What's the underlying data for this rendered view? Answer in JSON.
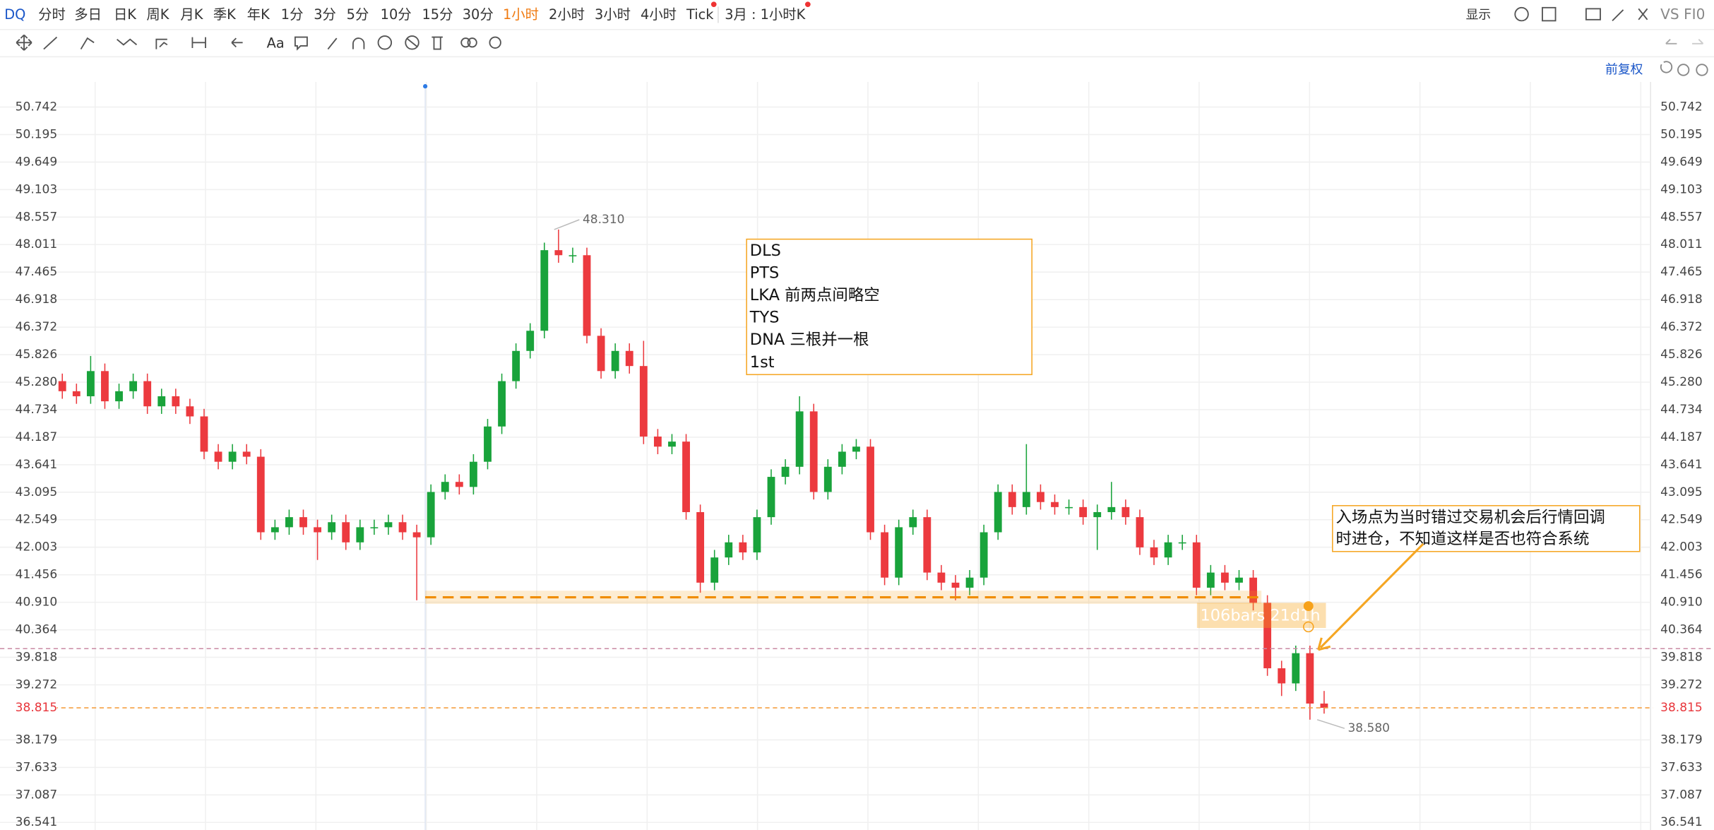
{
  "toolbar": {
    "symbol": "DQ",
    "periods": [
      "分时",
      "多日",
      "日K",
      "周K",
      "月K",
      "季K",
      "年K",
      "1分",
      "3分",
      "5分",
      "10分",
      "15分",
      "30分",
      "1小时",
      "2小时",
      "3小时",
      "4小时",
      "Tick"
    ],
    "active_period": "1小时",
    "period_menu": "3月 : 1小时K",
    "text_tool": "Aa",
    "display": "显示",
    "compare": "VS FI0",
    "adjust": "前复权"
  },
  "chart_data": {
    "type": "candlestick",
    "open": [
      45.3,
      45.1,
      45.0,
      45.5,
      44.9,
      45.1,
      45.3,
      44.8,
      45.0,
      44.8,
      44.6,
      43.9,
      43.7,
      43.9,
      43.8,
      42.3,
      42.4,
      42.6,
      42.4,
      42.3,
      42.5,
      42.1,
      42.4,
      42.4,
      42.5,
      42.3,
      42.2,
      43.1,
      43.3,
      43.2,
      43.7,
      44.4,
      45.3,
      45.9,
      46.3,
      47.9,
      47.8,
      47.8,
      46.2,
      45.5,
      45.9,
      45.6,
      44.2,
      44.0,
      44.1,
      42.7,
      41.3,
      41.8,
      42.1,
      41.9,
      42.6,
      43.4,
      43.6,
      44.7,
      43.1,
      43.6,
      43.9,
      44.0,
      42.3,
      41.4,
      42.4,
      42.6,
      41.5,
      41.3,
      41.2,
      41.4,
      42.3,
      43.1,
      42.8,
      43.1,
      42.9,
      42.8,
      42.8,
      42.6,
      42.7,
      42.8,
      42.6,
      42.0,
      41.8,
      42.1,
      42.1,
      41.2,
      41.5,
      41.3,
      41.4,
      40.9,
      39.6,
      39.3,
      39.9,
      38.9
    ],
    "high": [
      45.45,
      45.25,
      45.8,
      45.65,
      45.25,
      45.45,
      45.45,
      45.15,
      45.15,
      44.95,
      44.75,
      44.05,
      44.05,
      44.05,
      43.95,
      42.55,
      42.75,
      42.75,
      42.55,
      42.65,
      42.65,
      42.55,
      42.55,
      42.65,
      42.65,
      42.45,
      43.25,
      43.45,
      43.45,
      43.85,
      44.55,
      45.45,
      46.05,
      46.45,
      48.05,
      48.31,
      47.95,
      47.95,
      46.35,
      46.05,
      46.05,
      46.1,
      44.35,
      44.25,
      44.25,
      42.85,
      41.95,
      42.25,
      42.25,
      42.75,
      43.55,
      43.75,
      45.0,
      44.85,
      43.75,
      44.05,
      44.15,
      44.15,
      42.45,
      42.55,
      42.75,
      42.75,
      41.65,
      41.45,
      41.55,
      42.45,
      43.25,
      43.25,
      44.05,
      43.25,
      43.05,
      42.95,
      42.95,
      42.85,
      43.3,
      42.95,
      42.75,
      42.15,
      42.25,
      42.25,
      42.25,
      41.65,
      41.65,
      41.55,
      41.55,
      41.05,
      39.75,
      40.05,
      40.05,
      39.15
    ],
    "low": [
      44.95,
      44.85,
      44.85,
      44.75,
      44.75,
      44.95,
      44.65,
      44.65,
      44.65,
      44.45,
      43.75,
      43.55,
      43.55,
      43.65,
      42.15,
      42.15,
      42.25,
      42.25,
      41.75,
      42.15,
      41.95,
      41.95,
      42.25,
      42.25,
      42.15,
      40.95,
      42.05,
      42.95,
      43.05,
      43.05,
      43.55,
      44.25,
      45.15,
      45.75,
      46.15,
      47.65,
      47.65,
      46.05,
      45.35,
      45.35,
      45.45,
      44.05,
      43.85,
      43.85,
      42.55,
      41.1,
      41.15,
      41.65,
      41.75,
      41.75,
      42.45,
      43.25,
      43.45,
      42.95,
      42.95,
      43.45,
      43.75,
      42.15,
      41.25,
      41.25,
      42.25,
      41.35,
      41.15,
      40.95,
      41.05,
      41.25,
      42.15,
      42.65,
      42.65,
      42.75,
      42.65,
      42.65,
      42.45,
      41.95,
      42.55,
      42.45,
      41.85,
      41.65,
      41.65,
      41.95,
      41.05,
      41.05,
      41.15,
      41.15,
      40.75,
      39.45,
      39.05,
      39.15,
      38.58,
      38.7
    ],
    "close": [
      45.1,
      45.0,
      45.5,
      44.9,
      45.1,
      45.3,
      44.8,
      45.0,
      44.8,
      44.6,
      43.9,
      43.7,
      43.9,
      43.8,
      42.3,
      42.4,
      42.6,
      42.4,
      42.3,
      42.5,
      42.1,
      42.4,
      42.4,
      42.5,
      42.3,
      42.2,
      43.1,
      43.3,
      43.2,
      43.7,
      44.4,
      45.3,
      45.9,
      46.3,
      47.9,
      47.8,
      47.8,
      46.2,
      45.5,
      45.9,
      45.6,
      44.2,
      44.0,
      44.1,
      42.7,
      41.3,
      41.8,
      42.1,
      41.9,
      42.6,
      43.4,
      43.6,
      44.7,
      43.1,
      43.6,
      43.9,
      44.0,
      42.3,
      41.4,
      42.4,
      42.6,
      41.5,
      41.3,
      41.2,
      41.4,
      42.3,
      43.1,
      42.8,
      43.1,
      42.9,
      42.8,
      42.8,
      42.6,
      42.7,
      42.8,
      42.6,
      42.0,
      41.8,
      42.1,
      42.1,
      41.2,
      41.5,
      41.3,
      41.4,
      40.9,
      39.6,
      39.3,
      39.9,
      38.9,
      38.815
    ],
    "up_color": "#19a33b",
    "down_color": "#ec3a3f",
    "last_price_color": "#e8353b",
    "ylim": [
      36.39,
      51.24
    ],
    "yticks": [
      50.742,
      50.195,
      49.649,
      49.103,
      48.557,
      48.011,
      47.465,
      46.918,
      46.372,
      45.826,
      {
        "value": 45.28,
        "label": "45.280"
      },
      44.734,
      44.187,
      43.641,
      43.095,
      42.549,
      42.003,
      41.456,
      {
        "value": 40.91,
        "label": "40.910"
      },
      40.364,
      39.818,
      39.272,
      38.179,
      37.633,
      37.087,
      36.541
    ],
    "extreme_labels": {
      "high": {
        "value": 48.31,
        "label": "48.310"
      },
      "low": {
        "value": 38.58,
        "label": "38.580"
      }
    },
    "levels": [
      41.01,
      39.99
    ],
    "note_box": [
      "DLS",
      "PTS",
      "LKA 前两点间略空",
      "TYS",
      "DNA 三根并一根",
      "1st"
    ],
    "entry_note": [
      "入场点为当时错过交易机会后行情回调",
      "时进仓，不知道这样是否也符合系统"
    ],
    "measure_label": "106bars 21d1h"
  }
}
